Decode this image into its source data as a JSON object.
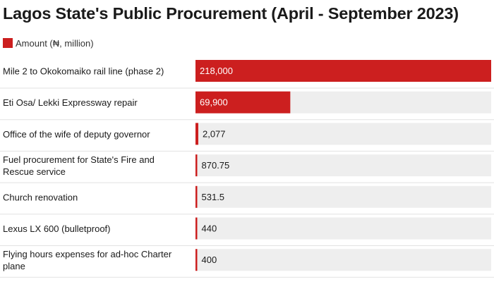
{
  "chart_data": {
    "type": "bar",
    "orientation": "horizontal",
    "title": "Lagos State's Public Procurement (April - September 2023)",
    "legend": {
      "label": "Amount (₦, million)",
      "placement": "top-left"
    },
    "categories": [
      "Mile 2 to Okokomaiko rail line (phase 2)",
      "Eti Osa/ Lekki Expressway repair",
      "Office of the wife of deputy governor",
      "Fuel procurement for State's Fire and Rescue service",
      "Church renovation",
      "Lexus LX 600 (bulletproof)",
      "Flying hours expenses for ad-hoc Charter plane"
    ],
    "series": [
      {
        "name": "Amount (₦, million)",
        "values": [
          218000,
          69900,
          2077,
          870.75,
          531.5,
          440,
          400
        ],
        "value_labels": [
          "218,000",
          "69,900",
          "2,077",
          "870.75",
          "531.5",
          "440",
          "400"
        ]
      }
    ],
    "xlim": [
      0,
      218000
    ],
    "colors": {
      "bar": "#cc1f1f",
      "track": "#eeeeee",
      "label_on_bar": "#ffffff",
      "label_off_bar": "#1a1a1a"
    }
  }
}
